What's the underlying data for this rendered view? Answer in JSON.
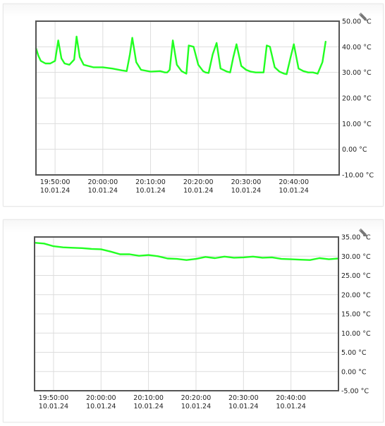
{
  "edit_icon": "pencil-icon",
  "colors": {
    "line": "#22ff22",
    "frame": "#555555",
    "grid": "#dddddd"
  },
  "chart_data": [
    {
      "type": "line",
      "title": "",
      "xlabel": "",
      "ylabel": "",
      "grid": true,
      "x_ticks": [
        {
          "t": "19:50:00",
          "label": "19:50:00",
          "date": "10.01.24"
        },
        {
          "t": "20:00:00",
          "label": "20:00:00",
          "date": "10.01.24"
        },
        {
          "t": "20:10:00",
          "label": "20:10:00",
          "date": "10.01.24"
        },
        {
          "t": "20:20:00",
          "label": "20:20:00",
          "date": "10.01.24"
        },
        {
          "t": "20:30:00",
          "label": "20:30:00",
          "date": "10.01.24"
        },
        {
          "t": "20:40:00",
          "label": "20:40:00",
          "date": "10.01.24"
        }
      ],
      "xlim": [
        "19:46:00",
        "20:49:30"
      ],
      "ylim": [
        -10,
        50
      ],
      "y_ticks": [
        {
          "v": 50,
          "label": "50.00 °C"
        },
        {
          "v": 40,
          "label": "40.00 °C"
        },
        {
          "v": 30,
          "label": "30.00 °C"
        },
        {
          "v": 20,
          "label": "20.00 °C"
        },
        {
          "v": 10,
          "label": "10.00 °C"
        },
        {
          "v": 0,
          "label": "0.00 °C"
        },
        {
          "v": -10,
          "label": "-10.00 °C"
        }
      ],
      "series": [
        {
          "x": [
            "19:46:00",
            "19:46:30",
            "19:47:00",
            "19:48:00",
            "19:49:00",
            "19:50:00",
            "19:50:40",
            "19:51:20",
            "19:52:00",
            "19:53:00",
            "19:54:00",
            "19:54:30",
            "19:55:10",
            "19:56:00",
            "19:57:00",
            "19:58:00",
            "20:00:00",
            "20:02:00",
            "20:04:00",
            "20:05:00",
            "20:05:40",
            "20:06:10",
            "20:07:00",
            "20:08:00",
            "20:10:00",
            "20:12:00",
            "20:13:00",
            "20:13:30",
            "20:14:00",
            "20:14:40",
            "20:15:30",
            "20:16:30",
            "20:17:00",
            "20:17:30",
            "20:18:00",
            "20:19:00",
            "20:20:00",
            "20:21:00",
            "20:21:30",
            "20:22:10",
            "20:23:00",
            "20:23:50",
            "20:24:40",
            "20:26:00",
            "20:26:40",
            "20:27:20",
            "20:28:00",
            "20:29:00",
            "20:30:00",
            "20:31:00",
            "20:32:00",
            "20:33:00",
            "20:33:40",
            "20:34:20",
            "20:35:00",
            "20:36:00",
            "20:37:00",
            "20:38:00",
            "20:38:30",
            "20:39:20",
            "20:40:00",
            "20:41:00",
            "20:42:00",
            "20:43:00",
            "20:44:00",
            "20:45:00",
            "20:46:00",
            "20:46:40"
          ],
          "y": [
            39.5,
            36.5,
            34.5,
            33.5,
            33.5,
            34.5,
            42.5,
            35.5,
            33.5,
            33,
            35,
            44,
            36,
            33,
            32.5,
            32,
            32,
            31.5,
            30.8,
            30.5,
            37,
            43.5,
            34,
            31,
            30.3,
            30.5,
            30,
            30,
            31,
            42.5,
            33,
            30.5,
            30,
            29.5,
            40.5,
            40,
            33,
            30.5,
            30,
            29.8,
            37,
            41.5,
            31.5,
            30.3,
            30,
            36,
            41,
            32.5,
            31,
            30.3,
            30,
            30,
            30,
            40.5,
            40,
            32,
            30.3,
            29.5,
            29.3,
            36,
            41,
            31.5,
            30.5,
            30,
            30,
            29.5,
            34,
            42
          ]
        }
      ]
    },
    {
      "type": "line",
      "title": "",
      "xlabel": "",
      "ylabel": "",
      "grid": true,
      "x_ticks": [
        {
          "t": "19:50:00",
          "label": "19:50:00",
          "date": "10.01.24"
        },
        {
          "t": "20:00:00",
          "label": "20:00:00",
          "date": "10.01.24"
        },
        {
          "t": "20:10:00",
          "label": "20:10:00",
          "date": "10.01.24"
        },
        {
          "t": "20:20:00",
          "label": "20:20:00",
          "date": "10.01.24"
        },
        {
          "t": "20:30:00",
          "label": "20:30:00",
          "date": "10.01.24"
        },
        {
          "t": "20:40:00",
          "label": "20:40:00",
          "date": "10.01.24"
        }
      ],
      "xlim": [
        "19:46:00",
        "20:50:00"
      ],
      "ylim": [
        -5,
        35
      ],
      "y_ticks": [
        {
          "v": 35,
          "label": "35.00 °C"
        },
        {
          "v": 30,
          "label": "30.00 °C"
        },
        {
          "v": 25,
          "label": "25.00 °C"
        },
        {
          "v": 20,
          "label": "20.00 °C"
        },
        {
          "v": 15,
          "label": "15.00 °C"
        },
        {
          "v": 10,
          "label": "10.00 °C"
        },
        {
          "v": 5,
          "label": "5.00 °C"
        },
        {
          "v": 0,
          "label": "0.00 °C"
        },
        {
          "v": -5,
          "label": "-5.00 °C"
        }
      ],
      "series": [
        {
          "x": [
            "19:46:00",
            "19:48:00",
            "19:50:00",
            "19:52:00",
            "19:54:00",
            "19:56:00",
            "19:58:00",
            "20:00:00",
            "20:02:00",
            "20:04:00",
            "20:06:00",
            "20:08:00",
            "20:10:00",
            "20:12:00",
            "20:14:00",
            "20:16:00",
            "20:18:00",
            "20:20:00",
            "20:22:00",
            "20:24:00",
            "20:26:00",
            "20:28:00",
            "20:30:00",
            "20:32:00",
            "20:34:00",
            "20:36:00",
            "20:38:00",
            "20:40:00",
            "20:42:00",
            "20:44:00",
            "20:46:00",
            "20:48:00",
            "20:50:00"
          ],
          "y": [
            33.5,
            33.3,
            32.6,
            32.3,
            32.2,
            32.1,
            31.9,
            31.8,
            31.2,
            30.5,
            30.5,
            30.1,
            30.3,
            30.0,
            29.4,
            29.3,
            29.0,
            29.3,
            29.8,
            29.5,
            29.9,
            29.6,
            29.7,
            29.9,
            29.6,
            29.7,
            29.3,
            29.2,
            29.1,
            29.0,
            29.5,
            29.2,
            29.4
          ]
        }
      ]
    }
  ]
}
